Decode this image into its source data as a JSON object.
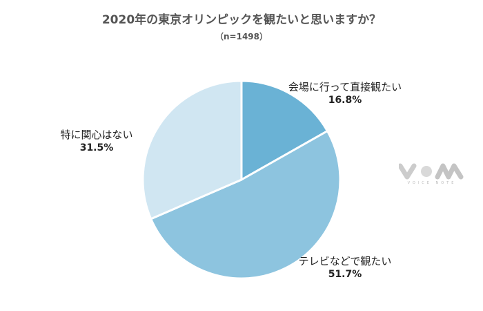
{
  "chart_data": {
    "type": "pie",
    "title": "2020年の東京オリンピックを観たいと思いますか？",
    "subtitle": "（n=1498）",
    "slices": [
      {
        "label": "会場に行って直接観たい",
        "value": 16.8,
        "value_label": "16.8%",
        "color": "#6ab2d5"
      },
      {
        "label": "テレビなどで観たい",
        "value": 51.7,
        "value_label": "51.7%",
        "color": "#8dc4df"
      },
      {
        "label": "特に関心はない",
        "value": 31.5,
        "value_label": "31.5%",
        "color": "#d0e6f2"
      }
    ],
    "start_angle": "12 o'clock",
    "direction": "clockwise",
    "legend": "none"
  },
  "watermark": {
    "text": "VOICE NOTE",
    "icon": "voice-note-logo"
  }
}
